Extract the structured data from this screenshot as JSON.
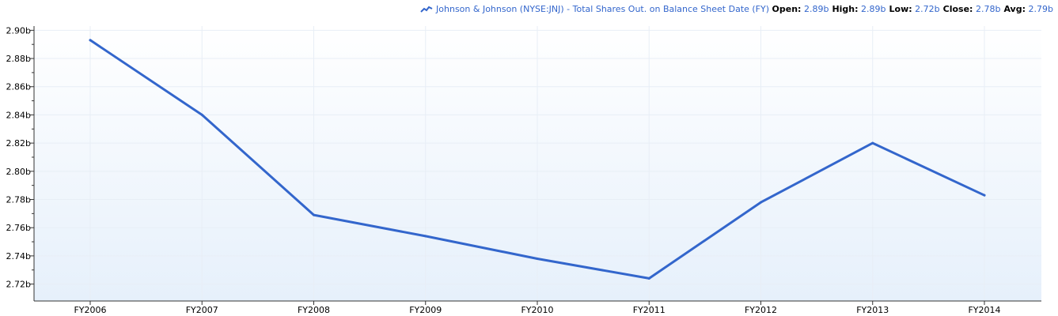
{
  "legend": {
    "series_name": "Johnson & Johnson (NYSE:JNJ) - Total Shares Out. on Balance Sheet Date (FY)",
    "open_label": "Open:",
    "open_value": "2.89b",
    "high_label": "High:",
    "high_value": "2.89b",
    "low_label": "Low:",
    "low_value": "2.72b",
    "close_label": "Close:",
    "close_value": "2.78b",
    "avg_label": "Avg:",
    "avg_value": "2.79b",
    "icon": "line-series-icon"
  },
  "colors": {
    "line": "#3366cc",
    "plot_bg_top": "#ffffff",
    "plot_bg_bottom": "#e6f0fb",
    "axis": "#333333",
    "grid": "#e8eef6"
  },
  "chart_data": {
    "type": "line",
    "categories": [
      "FY2006",
      "FY2007",
      "FY2008",
      "FY2009",
      "FY2010",
      "FY2011",
      "FY2012",
      "FY2013",
      "FY2014"
    ],
    "series": [
      {
        "name": "Johnson & Johnson (NYSE:JNJ) - Total Shares Out. on Balance Sheet Date (FY)",
        "values": [
          2.893,
          2.84,
          2.769,
          2.754,
          2.738,
          2.724,
          2.778,
          2.82,
          2.783
        ]
      }
    ],
    "y_ticks": [
      "2.72b",
      "2.74b",
      "2.76b",
      "2.78b",
      "2.80b",
      "2.82b",
      "2.84b",
      "2.86b",
      "2.88b",
      "2.90b"
    ],
    "y_tick_values": [
      2.72,
      2.74,
      2.76,
      2.78,
      2.8,
      2.82,
      2.84,
      2.86,
      2.88,
      2.9
    ],
    "ylim": [
      2.708,
      2.903
    ],
    "grid": true,
    "legend_position": "top-right"
  }
}
